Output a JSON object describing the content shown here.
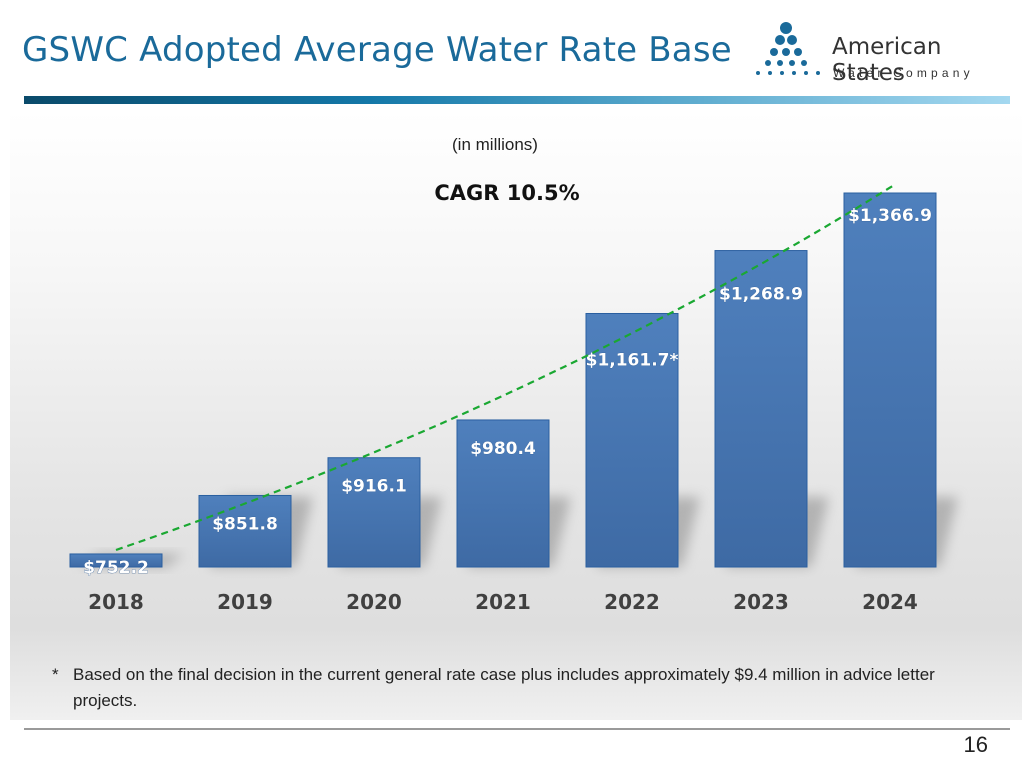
{
  "slide": {
    "title": "GSWC Adopted Average Water Rate Base",
    "page_number": "16",
    "logo": {
      "name": "American States",
      "subtitle": "Water Company",
      "brand_color": "#1a6a9a"
    },
    "footnote": {
      "marker": "*",
      "text": "Based on the final decision in the current general rate case plus includes approximately $9.4 million in advice letter projects."
    }
  },
  "chart_data": {
    "type": "bar",
    "subtitle": "(in millions)",
    "annotation": "CAGR 10.5%",
    "categories": [
      "2018",
      "2019",
      "2020",
      "2021",
      "2022",
      "2023",
      "2024"
    ],
    "values": [
      752.2,
      851.8,
      916.1,
      980.4,
      1161.7,
      1268.9,
      1366.9
    ],
    "data_labels": [
      "$752.2",
      "$851.8",
      "$916.1",
      "$980.4",
      "$1,161.7*",
      "$1,268.9",
      "$1,366.9"
    ],
    "trendline": {
      "type": "exponential",
      "cagr_percent": 10.5,
      "style": "dashed",
      "color": "#1aa832"
    },
    "bar_color": "#4a7cb8",
    "xlabel": "",
    "ylabel": "",
    "ylim": [
      700,
      1400
    ],
    "grid": false,
    "legend": "none"
  }
}
